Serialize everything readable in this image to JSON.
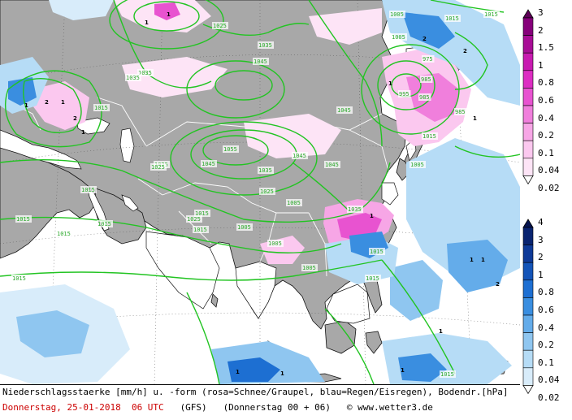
{
  "caption": {
    "line1": "Niederschlagsstaerke [mm/h] u. -form (rosa=Schnee/Graupel, blau=Regen/Eisregen), Bodendr.[hPa]",
    "date_label": "Donnerstag, 25-01-2018  06 UTC",
    "model": "(GFS)",
    "run": "(Donnerstag 00 + 06)",
    "credit": "© www.wetter3.de"
  },
  "legend_snow": {
    "name": "snow/graupel scale",
    "colors": [
      "#ffffff",
      "#fde4f6",
      "#fbc8ef",
      "#f7a6e6",
      "#f07fdc",
      "#e853d0",
      "#dd2dc2",
      "#c81ab0",
      "#a80d96",
      "#86007a",
      "#5e0058"
    ],
    "labels": [
      "3",
      "2",
      "1.5",
      "1",
      "0.8",
      "0.6",
      "0.4",
      "0.2",
      "0.1",
      "0.04",
      "0.02"
    ]
  },
  "legend_rain": {
    "name": "rain/freezing rain scale",
    "colors": [
      "#ffffff",
      "#d8ecfa",
      "#b6dcf6",
      "#8fc6f0",
      "#64acea",
      "#3a8ee0",
      "#1d6fd2",
      "#1454b8",
      "#0f3a98",
      "#0a2470",
      "#071550"
    ],
    "labels": [
      "4",
      "3",
      "2",
      "1",
      "0.8",
      "0.6",
      "0.4",
      "0.2",
      "0.1",
      "0.04",
      "0.02"
    ]
  },
  "isobar_labels": [
    "1035",
    "1045",
    "1035",
    "1055",
    "1045",
    "1035",
    "1045",
    "1045",
    "1025",
    "1045",
    "1035",
    "1025",
    "1015",
    "1015",
    "1025",
    "1015",
    "1035",
    "1015",
    "1015",
    "1005",
    "1005",
    "1005",
    "1025",
    "1015",
    "1005",
    "1015",
    "1015",
    "1005",
    "1025",
    "1015",
    "1005",
    "1015",
    "1015",
    "1015",
    "1005",
    "1015",
    "995",
    "985",
    "975",
    "985",
    "1015",
    "985"
  ],
  "colors": {
    "ocean": "#ffffff",
    "land": "#a8a8a8",
    "isobar": "#22c422",
    "border": "#ffffff",
    "coast": "#000000"
  }
}
